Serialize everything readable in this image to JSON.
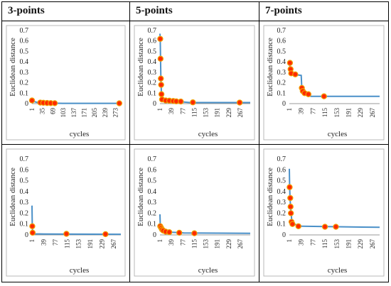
{
  "headers": [
    "3-points",
    "5-points",
    "7-points"
  ],
  "colors": {
    "line": "#4a90c8",
    "marker_fill": "#ff2a00",
    "marker_stroke": "#f0a000",
    "frame": "#b8b8b8",
    "text": "#222222"
  },
  "chart_data": [
    {
      "type": "line",
      "ylabel": "Euclidean distance",
      "xlabel": "cycles",
      "ylim": [
        0,
        0.7
      ],
      "yticks": [
        "0",
        "0.1",
        "0.2",
        "0.3",
        "0.4",
        "0.5",
        "0.6",
        "0.7"
      ],
      "xlim": [
        1,
        290
      ],
      "xticks": [
        "1",
        "35",
        "69",
        "103",
        "137",
        "171",
        "205",
        "239",
        "273"
      ],
      "line": [
        [
          1,
          0.04
        ],
        [
          8,
          0.02
        ],
        [
          20,
          0.01
        ],
        [
          60,
          0.005
        ],
        [
          100,
          0.003
        ],
        [
          290,
          0.003
        ]
      ],
      "markers": [
        [
          1,
          0.03
        ],
        [
          28,
          0.01
        ],
        [
          38,
          0.008
        ],
        [
          50,
          0.006
        ],
        [
          62,
          0.005
        ],
        [
          75,
          0.004
        ],
        [
          285,
          0.003
        ]
      ]
    },
    {
      "type": "line",
      "ylabel": "Euclidean distance",
      "xlabel": "cycles",
      "ylim": [
        0,
        0.7
      ],
      "yticks": [
        "0",
        "0.1",
        "0.2",
        "0.3",
        "0.4",
        "0.5",
        "0.6",
        "0.7"
      ],
      "xlim": [
        1,
        300
      ],
      "xticks": [
        "1",
        "39",
        "77",
        "115",
        "153",
        "191",
        "229",
        "267"
      ],
      "line": [
        [
          1,
          0.67
        ],
        [
          2,
          0.62
        ],
        [
          3,
          0.44
        ],
        [
          4,
          0.24
        ],
        [
          5,
          0.17
        ],
        [
          6,
          0.09
        ],
        [
          7,
          0.04
        ],
        [
          15,
          0.03
        ],
        [
          40,
          0.025
        ],
        [
          60,
          0.02
        ],
        [
          80,
          0.015
        ],
        [
          100,
          0.01
        ],
        [
          300,
          0.01
        ]
      ],
      "markers": [
        [
          2,
          0.62
        ],
        [
          3,
          0.43
        ],
        [
          4,
          0.24
        ],
        [
          5,
          0.18
        ],
        [
          6,
          0.09
        ],
        [
          8,
          0.04
        ],
        [
          20,
          0.03
        ],
        [
          32,
          0.028
        ],
        [
          45,
          0.025
        ],
        [
          55,
          0.022
        ],
        [
          70,
          0.02
        ],
        [
          110,
          0.012
        ],
        [
          265,
          0.01
        ]
      ]
    },
    {
      "type": "line",
      "ylabel": "Euclidean distance",
      "xlabel": "cycles",
      "ylim": [
        0,
        0.7
      ],
      "yticks": [
        "0",
        "0.1",
        "0.2",
        "0.3",
        "0.4",
        "0.5",
        "0.6",
        "0.7"
      ],
      "xlim": [
        1,
        290
      ],
      "xticks": [
        "1",
        "39",
        "77",
        "115",
        "153",
        "191",
        "229",
        "267"
      ],
      "line": [
        [
          1,
          0.4
        ],
        [
          3,
          0.35
        ],
        [
          5,
          0.32
        ],
        [
          8,
          0.29
        ],
        [
          15,
          0.28
        ],
        [
          39,
          0.27
        ],
        [
          41,
          0.14
        ],
        [
          45,
          0.11
        ],
        [
          55,
          0.09
        ],
        [
          65,
          0.08
        ],
        [
          70,
          0.07
        ],
        [
          290,
          0.07
        ]
      ],
      "markers": [
        [
          3,
          0.39
        ],
        [
          5,
          0.33
        ],
        [
          7,
          0.29
        ],
        [
          20,
          0.28
        ],
        [
          41,
          0.15
        ],
        [
          44,
          0.12
        ],
        [
          50,
          0.1
        ],
        [
          62,
          0.09
        ],
        [
          112,
          0.07
        ]
      ]
    },
    {
      "type": "line",
      "ylabel": "Euclidean distance",
      "xlabel": "cycles",
      "ylim": [
        0,
        0.7
      ],
      "yticks": [
        "0",
        "0.1",
        "0.2",
        "0.3",
        "0.4",
        "0.5",
        "0.6",
        "0.7"
      ],
      "xlim": [
        1,
        290
      ],
      "xticks": [
        "1",
        "39",
        "77",
        "115",
        "153",
        "191",
        "229",
        "267"
      ],
      "line": [
        [
          1,
          0.27
        ],
        [
          2,
          0.08
        ],
        [
          3,
          0.02
        ],
        [
          10,
          0.01
        ],
        [
          40,
          0.008
        ],
        [
          290,
          0.006
        ]
      ],
      "markers": [
        [
          2,
          0.08
        ],
        [
          3,
          0.02
        ],
        [
          113,
          0.01
        ],
        [
          240,
          0.007
        ]
      ]
    },
    {
      "type": "line",
      "ylabel": "Euclidean distance",
      "xlabel": "cycles",
      "ylim": [
        0,
        0.7
      ],
      "yticks": [
        "0",
        "0.1",
        "0.2",
        "0.3",
        "0.4",
        "0.5",
        "0.6",
        "0.7"
      ],
      "xlim": [
        1,
        300
      ],
      "xticks": [
        "1",
        "39",
        "77",
        "115",
        "153",
        "191",
        "229",
        "267"
      ],
      "line": [
        [
          1,
          0.19
        ],
        [
          2,
          0.1
        ],
        [
          5,
          0.07
        ],
        [
          10,
          0.05
        ],
        [
          20,
          0.03
        ],
        [
          40,
          0.025
        ],
        [
          80,
          0.018
        ],
        [
          300,
          0.015
        ]
      ],
      "markers": [
        [
          2,
          0.08
        ],
        [
          5,
          0.065
        ],
        [
          8,
          0.05
        ],
        [
          12,
          0.04
        ],
        [
          20,
          0.03
        ],
        [
          32,
          0.025
        ],
        [
          65,
          0.02
        ],
        [
          115,
          0.015
        ]
      ]
    },
    {
      "type": "line",
      "ylabel": "Euclidean distance",
      "xlabel": "cycles",
      "ylim": [
        0,
        0.7
      ],
      "yticks": [
        "0",
        "0.1",
        "0.2",
        "0.3",
        "0.4",
        "0.5",
        "0.6",
        "0.7"
      ],
      "xlim": [
        1,
        290
      ],
      "xticks": [
        "1",
        "39",
        "77",
        "115",
        "153",
        "191",
        "229",
        "267"
      ],
      "line": [
        [
          1,
          0.61
        ],
        [
          2,
          0.45
        ],
        [
          3,
          0.35
        ],
        [
          5,
          0.25
        ],
        [
          7,
          0.2
        ],
        [
          9,
          0.12
        ],
        [
          12,
          0.1
        ],
        [
          30,
          0.09
        ],
        [
          40,
          0.08
        ],
        [
          290,
          0.07
        ]
      ],
      "markers": [
        [
          2,
          0.44
        ],
        [
          4,
          0.34
        ],
        [
          5,
          0.26
        ],
        [
          6,
          0.2
        ],
        [
          8,
          0.12
        ],
        [
          11,
          0.1
        ],
        [
          30,
          0.08
        ],
        [
          115,
          0.075
        ],
        [
          150,
          0.075
        ]
      ]
    }
  ]
}
